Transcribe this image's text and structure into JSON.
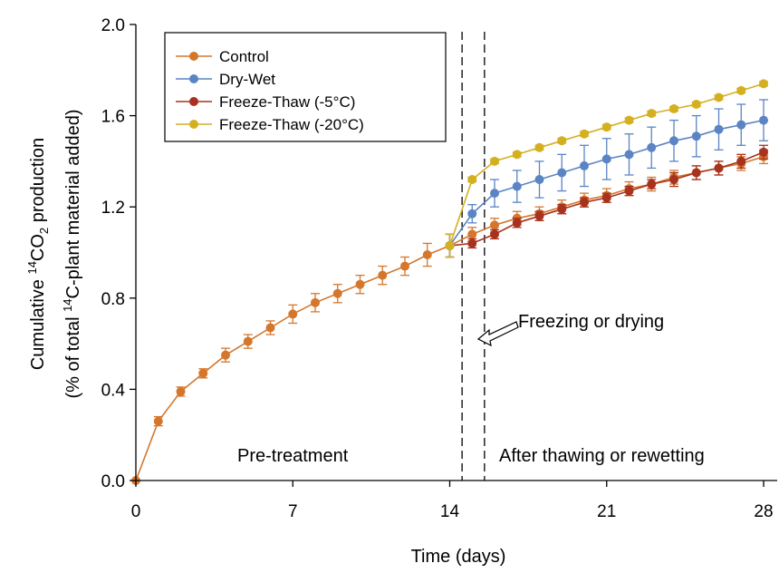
{
  "chart_data": {
    "type": "line",
    "xlabel": "Time (days)",
    "ylabel_line1_pre": "Cumulative ",
    "ylabel_line1_sup": "14",
    "ylabel_line1_mid": "CO",
    "ylabel_line1_sub": "2",
    "ylabel_line1_post": " production",
    "ylabel_line2_pre": "(% of total ",
    "ylabel_line2_sup": "14",
    "ylabel_line2_post": "C-plant material added)",
    "xlim": [
      0,
      28
    ],
    "ylim": [
      0,
      2.0
    ],
    "xticks": [
      0,
      7,
      14,
      21,
      28
    ],
    "yticks": [
      "0.0",
      "0.4",
      "0.8",
      "1.2",
      "1.6",
      "2.0"
    ],
    "legend_position": "top-left",
    "annotations": {
      "pre": "Pre-treatment",
      "post": "After thawing or rewetting",
      "arrow": "Freezing or drying"
    },
    "dividers_x": [
      14.55,
      15.55
    ],
    "series": [
      {
        "name": "Control",
        "color": "#D4772C",
        "x": [
          0,
          1,
          2,
          3,
          4,
          5,
          6,
          7,
          8,
          9,
          10,
          11,
          12,
          13,
          14,
          15,
          16,
          17,
          18,
          19,
          20,
          21,
          22,
          23,
          24,
          25,
          26,
          27,
          28
        ],
        "y": [
          0.0,
          0.26,
          0.39,
          0.47,
          0.55,
          0.61,
          0.67,
          0.73,
          0.78,
          0.82,
          0.86,
          0.9,
          0.94,
          0.99,
          1.03,
          1.08,
          1.12,
          1.15,
          1.17,
          1.2,
          1.23,
          1.25,
          1.28,
          1.3,
          1.33,
          1.35,
          1.37,
          1.39,
          1.42
        ],
        "err": [
          0,
          0.02,
          0.02,
          0.02,
          0.03,
          0.03,
          0.03,
          0.04,
          0.04,
          0.04,
          0.04,
          0.04,
          0.04,
          0.05,
          0.05,
          0.03,
          0.03,
          0.03,
          0.03,
          0.03,
          0.03,
          0.03,
          0.03,
          0.03,
          0.03,
          0.03,
          0.03,
          0.03,
          0.03
        ]
      },
      {
        "name": "Dry-Wet",
        "color": "#5B84C4",
        "x": [
          14,
          15,
          16,
          17,
          18,
          19,
          20,
          21,
          22,
          23,
          24,
          25,
          26,
          27,
          28
        ],
        "y": [
          1.03,
          1.17,
          1.26,
          1.29,
          1.32,
          1.35,
          1.38,
          1.41,
          1.43,
          1.46,
          1.49,
          1.51,
          1.54,
          1.56,
          1.58
        ],
        "err": [
          0.05,
          0.04,
          0.06,
          0.07,
          0.08,
          0.08,
          0.09,
          0.09,
          0.09,
          0.09,
          0.09,
          0.09,
          0.09,
          0.09,
          0.09
        ]
      },
      {
        "name": "Freeze-Thaw (-5°C)",
        "color": "#A8321E",
        "x": [
          14,
          15,
          16,
          17,
          18,
          19,
          20,
          21,
          22,
          23,
          24,
          25,
          26,
          27,
          28
        ],
        "y": [
          1.03,
          1.04,
          1.08,
          1.13,
          1.16,
          1.19,
          1.22,
          1.24,
          1.27,
          1.3,
          1.32,
          1.35,
          1.37,
          1.4,
          1.44
        ],
        "err": [
          0.05,
          0.02,
          0.02,
          0.02,
          0.02,
          0.02,
          0.02,
          0.02,
          0.02,
          0.02,
          0.03,
          0.03,
          0.03,
          0.03,
          0.03
        ]
      },
      {
        "name": "Freeze-Thaw (-20°C)",
        "color": "#D4B020",
        "x": [
          14,
          15,
          16,
          17,
          18,
          19,
          20,
          21,
          22,
          23,
          24,
          25,
          26,
          27,
          28
        ],
        "y": [
          1.03,
          1.32,
          1.4,
          1.43,
          1.46,
          1.49,
          1.52,
          1.55,
          1.58,
          1.61,
          1.63,
          1.65,
          1.68,
          1.71,
          1.74
        ],
        "err": [
          0.05,
          0.01,
          0.01,
          0.01,
          0.01,
          0.01,
          0.01,
          0.01,
          0.01,
          0.01,
          0.01,
          0.01,
          0.01,
          0.01,
          0.01
        ]
      }
    ]
  }
}
